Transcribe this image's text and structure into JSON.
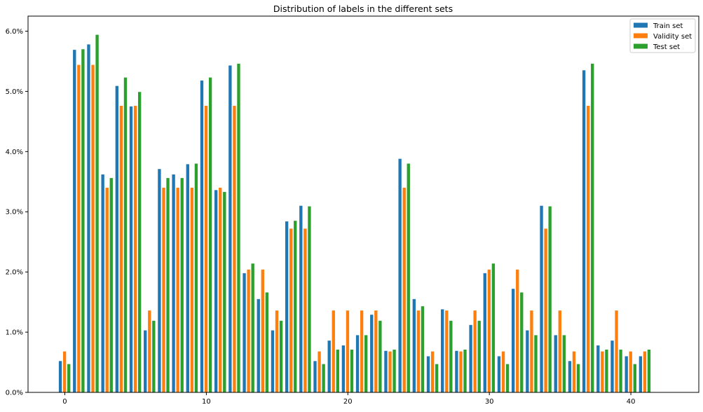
{
  "chart_data": {
    "type": "bar",
    "title": "Distribution of labels in the different sets",
    "xlabel": "",
    "ylabel": "",
    "x": [
      0,
      1,
      2,
      3,
      4,
      5,
      6,
      7,
      8,
      9,
      10,
      11,
      12,
      13,
      14,
      15,
      16,
      17,
      18,
      19,
      20,
      21,
      22,
      23,
      24,
      25,
      26,
      27,
      28,
      29,
      30,
      31,
      32,
      33,
      34,
      35,
      36,
      37,
      38,
      39,
      40,
      41,
      42
    ],
    "xticks": [
      0,
      10,
      20,
      30,
      40
    ],
    "xtick_labels": [
      "0",
      "10",
      "20",
      "30",
      "40"
    ],
    "xlim": [
      -2.6,
      44.8
    ],
    "ylim": [
      0,
      6.25
    ],
    "yticks": [
      0,
      1,
      2,
      3,
      4,
      5,
      6
    ],
    "ytick_labels": [
      "0.0%",
      "1.0%",
      "2.0%",
      "3.0%",
      "4.0%",
      "5.0%",
      "6.0%"
    ],
    "y_unit": "%",
    "grid": false,
    "legend_position": "top-right",
    "series": [
      {
        "name": "Train set",
        "color": "#1f77b4",
        "values": [
          0.52,
          5.69,
          5.78,
          3.62,
          5.09,
          4.75,
          1.03,
          3.71,
          3.62,
          3.79,
          5.18,
          3.36,
          5.43,
          1.98,
          1.55,
          1.03,
          2.84,
          3.1,
          0.52,
          0.86,
          0.78,
          0.95,
          1.29,
          0.69,
          3.88,
          1.55,
          0.6,
          1.38,
          0.69,
          1.12,
          1.98,
          0.6,
          1.72,
          1.03,
          3.1,
          0.95,
          0.52,
          5.35,
          0.78,
          0.86,
          0.6,
          0.6,
          0.0
        ]
      },
      {
        "name": "Validity set",
        "color": "#ff7f0e",
        "values": [
          0.68,
          5.44,
          5.44,
          3.4,
          4.76,
          4.76,
          1.36,
          3.4,
          3.4,
          3.4,
          4.76,
          3.4,
          4.76,
          2.04,
          2.04,
          1.36,
          2.72,
          2.72,
          0.68,
          1.36,
          1.36,
          1.36,
          1.36,
          0.68,
          3.4,
          1.36,
          0.68,
          1.36,
          0.68,
          1.36,
          2.04,
          0.68,
          2.04,
          1.36,
          2.72,
          1.36,
          0.68,
          4.76,
          0.68,
          1.36,
          0.68,
          0.68,
          0.0
        ]
      },
      {
        "name": "Test set",
        "color": "#2ca02c",
        "values": [
          0.47,
          5.7,
          5.94,
          3.56,
          5.23,
          4.99,
          1.19,
          3.56,
          3.56,
          3.8,
          5.23,
          3.33,
          5.46,
          2.14,
          1.66,
          1.19,
          2.85,
          3.09,
          0.47,
          0.71,
          0.71,
          0.95,
          1.19,
          0.71,
          3.8,
          1.43,
          0.47,
          1.19,
          0.71,
          1.19,
          2.14,
          0.47,
          1.66,
          0.95,
          3.09,
          0.95,
          0.47,
          5.46,
          0.71,
          0.71,
          0.47,
          0.71,
          0.0
        ]
      }
    ]
  }
}
